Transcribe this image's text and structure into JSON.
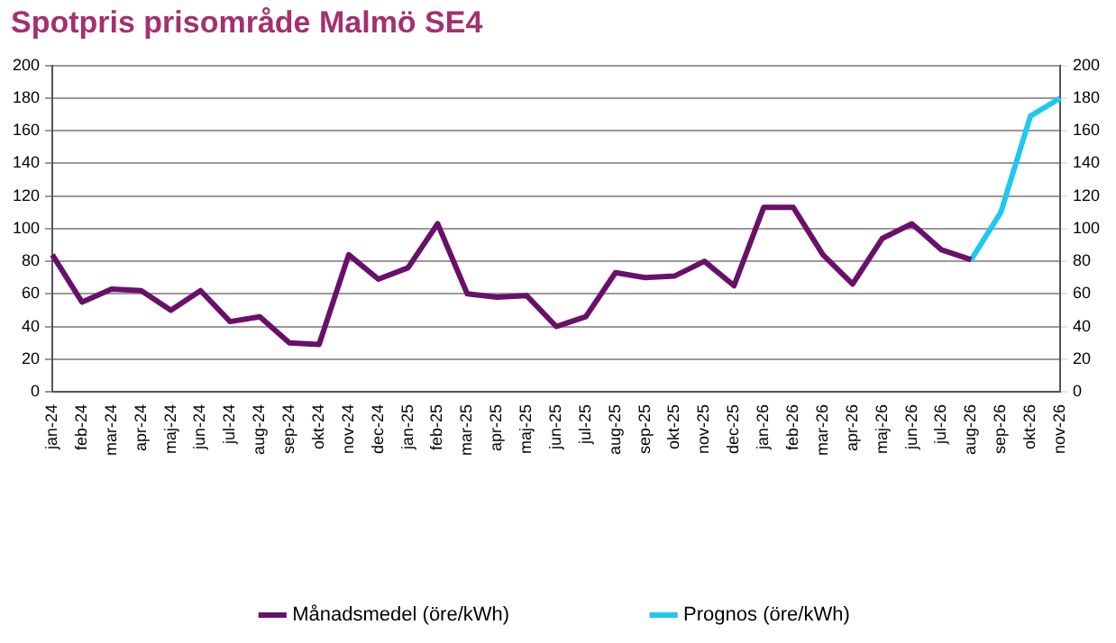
{
  "chart_data": {
    "type": "line",
    "title": "Spotpris prisområde Malmö SE4",
    "categories": [
      "jan-24",
      "feb-24",
      "mar-24",
      "apr-24",
      "maj-24",
      "jun-24",
      "jul-24",
      "aug-24",
      "sep-24",
      "okt-24",
      "nov-24",
      "dec-24",
      "jan-25",
      "feb-25",
      "mar-25",
      "apr-25",
      "maj-25",
      "jun-25",
      "jul-25",
      "aug-25",
      "sep-25",
      "okt-25",
      "nov-25",
      "dec-25",
      "jan-26",
      "feb-26",
      "mar-26",
      "apr-26",
      "maj-26",
      "jun-26",
      "jul-26",
      "aug-26",
      "sep-26",
      "okt-26",
      "nov-26"
    ],
    "series": [
      {
        "name": "Månadsmedel (öre/kWh)",
        "color": "#6a0f6b",
        "values": [
          84,
          55,
          63,
          62,
          50,
          62,
          43,
          46,
          30,
          29,
          84,
          69,
          76,
          103,
          60,
          58,
          59,
          40,
          46,
          73,
          70,
          71,
          80,
          65,
          113,
          113,
          84,
          66,
          94,
          103,
          87,
          81,
          null,
          null,
          null
        ]
      },
      {
        "name": "Prognos (öre/kWh)",
        "color": "#1ec8f2",
        "values": [
          null,
          null,
          null,
          null,
          null,
          null,
          null,
          null,
          null,
          null,
          null,
          null,
          null,
          null,
          null,
          null,
          null,
          null,
          null,
          null,
          null,
          null,
          null,
          null,
          null,
          null,
          null,
          null,
          null,
          null,
          null,
          81,
          110,
          169,
          180
        ]
      }
    ],
    "ylim": [
      0,
      200
    ],
    "yticks": [
      0,
      20,
      40,
      60,
      80,
      100,
      120,
      140,
      160,
      180,
      200
    ],
    "y2lim": [
      0,
      200
    ],
    "y2ticks": [
      0,
      20,
      40,
      60,
      80,
      100,
      120,
      140,
      160,
      180,
      200
    ],
    "grid": "y",
    "legend": "bottom",
    "marker": "none",
    "line_style": "solid"
  }
}
